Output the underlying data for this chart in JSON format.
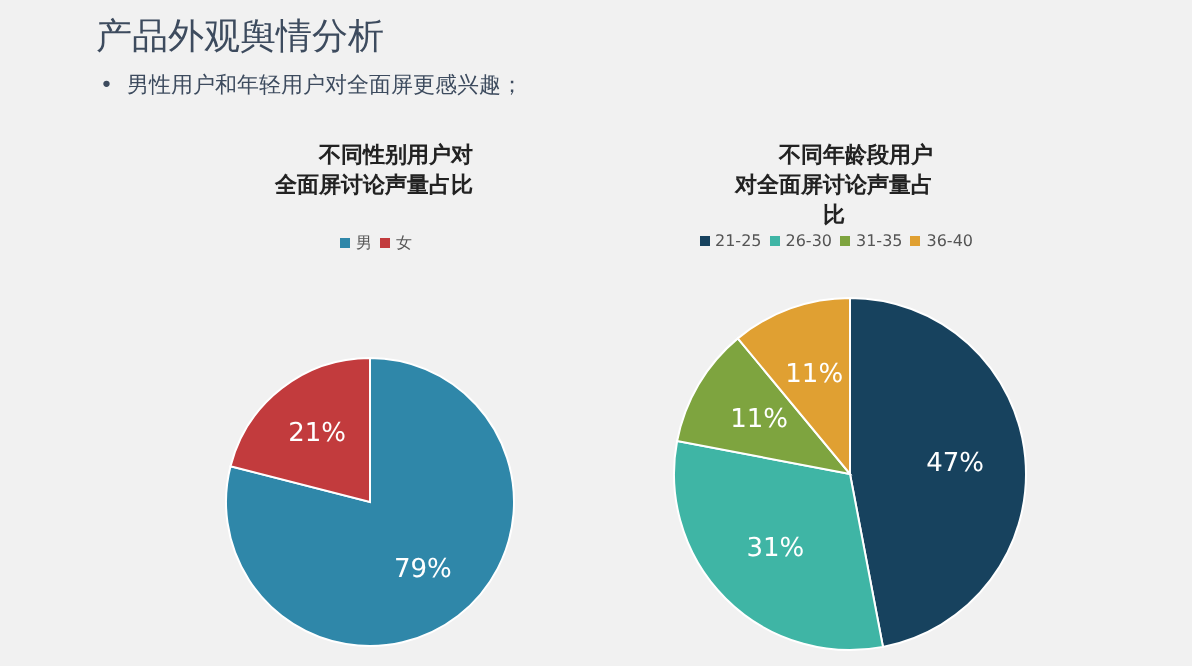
{
  "chart_data": [
    {
      "type": "other",
      "title": "产品外观舆情分析",
      "subtitle": "•  男性用户和年轻用户对全面屏更感兴趣；"
    },
    {
      "type": "pie",
      "title": "不同性别用户对全面屏讨论声量占比",
      "categories": [
        "男",
        "女"
      ],
      "values": [
        79,
        21
      ],
      "colors": [
        "#2f87a9",
        "#c23b3d"
      ],
      "value_labels": [
        "79%",
        "21%"
      ],
      "legend": "top"
    },
    {
      "type": "pie",
      "title": "不同年龄段用户对全面屏讨论声量占比",
      "categories": [
        "21-25",
        "26-30",
        "31-35",
        "36-40"
      ],
      "values": [
        47,
        31,
        11,
        11
      ],
      "colors": [
        "#17425e",
        "#3fb5a5",
        "#7ea43f",
        "#e0a032"
      ],
      "value_labels": [
        "47%",
        "31%",
        "11%",
        "11%"
      ],
      "legend": "top"
    }
  ]
}
